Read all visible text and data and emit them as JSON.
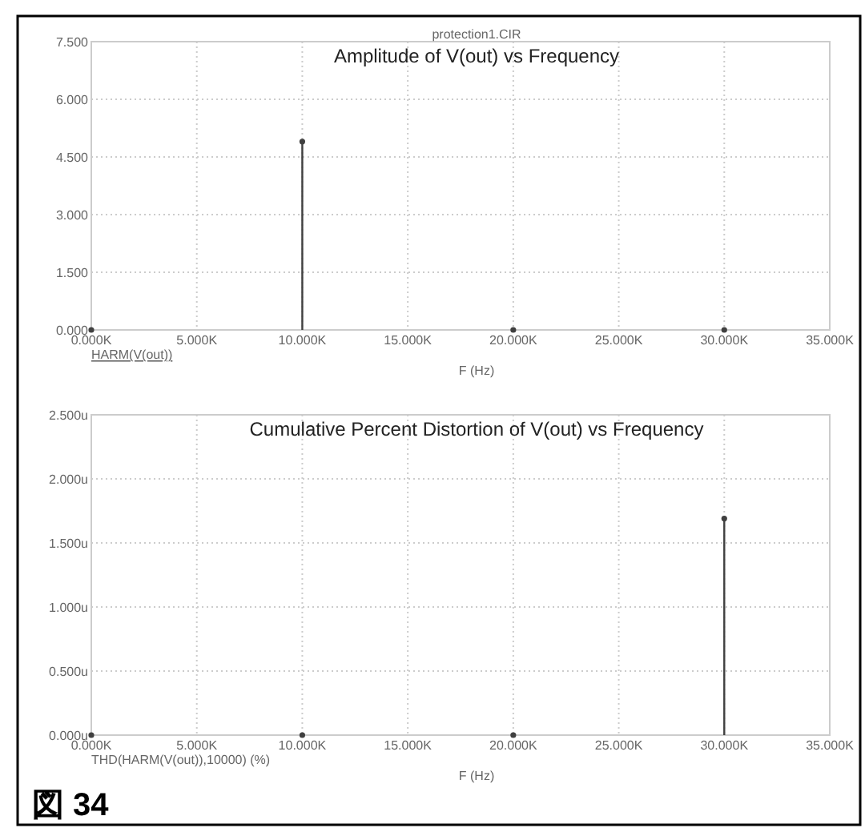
{
  "chart_data": [
    {
      "type": "lollipop",
      "title": "Amplitude of V(out) vs Frequency",
      "subtitle": "protection1.CIR",
      "xlabel": "F (Hz)",
      "x": [
        0,
        10,
        20,
        30
      ],
      "values": [
        0,
        4.9,
        0,
        0
      ],
      "color": "#404040",
      "marker": "circle",
      "grid": true,
      "xlim": [
        0,
        35
      ],
      "xticks": [
        {
          "value": 0,
          "label": "0.000K"
        },
        {
          "value": 5,
          "label": "5.000K"
        },
        {
          "value": 10,
          "label": "10.000K"
        },
        {
          "value": 15,
          "label": "15.000K"
        },
        {
          "value": 20,
          "label": "20.000K"
        },
        {
          "value": 25,
          "label": "25.000K"
        },
        {
          "value": 30,
          "label": "30.000K"
        },
        {
          "value": 35,
          "label": "35.000K"
        }
      ],
      "ylim": [
        0,
        7.5
      ],
      "yticks": [
        {
          "value": 0,
          "label": "0.000"
        },
        {
          "value": 1.5,
          "label": "1.500"
        },
        {
          "value": 3,
          "label": "3.000"
        },
        {
          "value": 4.5,
          "label": "4.500"
        },
        {
          "value": 6,
          "label": "6.000"
        },
        {
          "value": 7.5,
          "label": "7.500"
        }
      ],
      "annotations": [
        "HARM(V(out))"
      ]
    },
    {
      "type": "lollipop",
      "title": "Cumulative Percent Distortion of V(out) vs Frequency",
      "xlabel": "F (Hz)",
      "x": [
        0,
        10,
        20,
        30
      ],
      "values": [
        0,
        0,
        0,
        1.69
      ],
      "color": "#404040",
      "marker": "circle",
      "grid": true,
      "xlim": [
        0,
        35
      ],
      "xticks": [
        {
          "value": 0,
          "label": "0.000K"
        },
        {
          "value": 5,
          "label": "5.000K"
        },
        {
          "value": 10,
          "label": "10.000K"
        },
        {
          "value": 15,
          "label": "15.000K"
        },
        {
          "value": 20,
          "label": "20.000K"
        },
        {
          "value": 25,
          "label": "25.000K"
        },
        {
          "value": 30,
          "label": "30.000K"
        },
        {
          "value": 35,
          "label": "35.000K"
        }
      ],
      "ylim": [
        0,
        2.5
      ],
      "yticks": [
        {
          "value": 0,
          "label": "0.000u"
        },
        {
          "value": 0.5,
          "label": "0.500u"
        },
        {
          "value": 1,
          "label": "1.000u"
        },
        {
          "value": 1.5,
          "label": "1.500u"
        },
        {
          "value": 2,
          "label": "2.000u"
        },
        {
          "value": 2.5,
          "label": "2.500u"
        }
      ],
      "annotations": [
        "THD(HARM(V(out)),10000) (%)",
        "図 34"
      ]
    }
  ]
}
